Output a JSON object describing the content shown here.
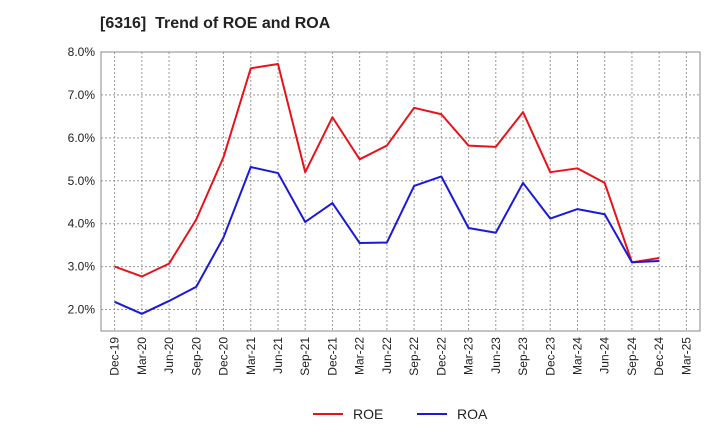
{
  "chart_data": {
    "type": "line",
    "title": "[6316]  Trend of ROE and ROA",
    "xlabel": "",
    "ylabel": "",
    "categories": [
      "Dec-19",
      "Mar-20",
      "Jun-20",
      "Sep-20",
      "Dec-20",
      "Mar-21",
      "Jun-21",
      "Sep-21",
      "Dec-21",
      "Mar-22",
      "Jun-22",
      "Sep-22",
      "Dec-22",
      "Mar-23",
      "Jun-23",
      "Sep-23",
      "Dec-23",
      "Mar-24",
      "Jun-24",
      "Sep-24",
      "Dec-24",
      "Mar-25"
    ],
    "ylim": [
      1.5,
      8.0
    ],
    "yticks": [
      2.0,
      3.0,
      4.0,
      5.0,
      6.0,
      7.0,
      8.0
    ],
    "ytick_labels": [
      "2.0%",
      "3.0%",
      "4.0%",
      "5.0%",
      "6.0%",
      "7.0%",
      "8.0%"
    ],
    "grid": true,
    "legend": "bottom",
    "series": [
      {
        "name": "ROE",
        "color": "#e8131a",
        "values": [
          3.0,
          2.77,
          3.07,
          4.1,
          5.55,
          7.62,
          7.72,
          5.2,
          6.48,
          5.5,
          5.82,
          6.7,
          6.55,
          5.82,
          5.79,
          6.6,
          5.2,
          5.29,
          4.95,
          3.1,
          3.2,
          null
        ]
      },
      {
        "name": "ROA",
        "color": "#1a1ad8",
        "values": [
          2.18,
          1.9,
          2.2,
          2.53,
          3.68,
          5.32,
          5.18,
          4.04,
          4.48,
          3.55,
          3.56,
          4.88,
          5.1,
          3.9,
          3.79,
          4.95,
          4.12,
          4.34,
          4.22,
          3.1,
          3.13,
          null
        ]
      }
    ]
  }
}
